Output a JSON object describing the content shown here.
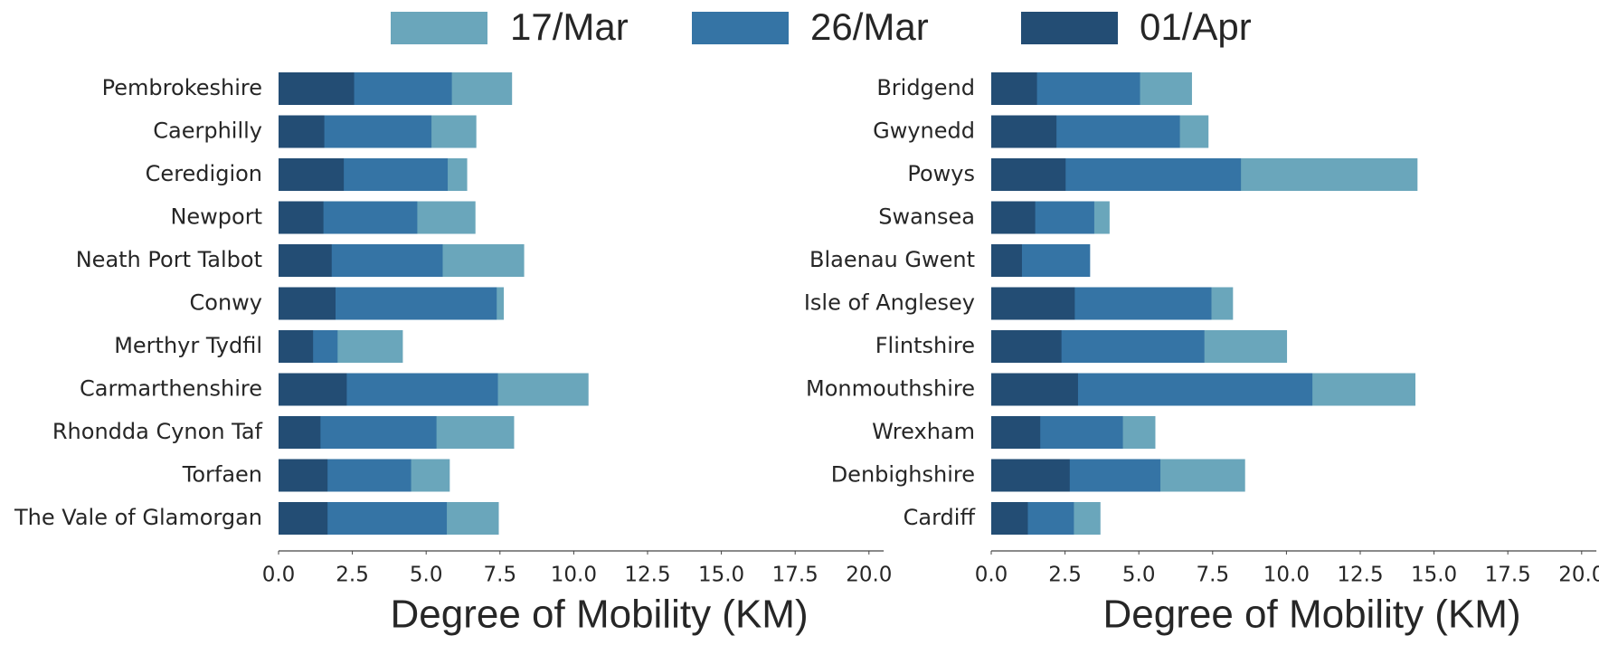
{
  "chart_data": [
    {
      "type": "bar",
      "orientation": "horizontal",
      "overlap": true,
      "xlabel": "Degree of Mobility (KM)",
      "categories": [
        "Pembrokeshire",
        "Caerphilly",
        "Ceredigion",
        "Newport",
        "Neath Port Talbot",
        "Conwy",
        "Merthyr Tydfil",
        "Carmarthenshire",
        "Rhondda Cynon Taf",
        "Torfaen",
        "The Vale of Glamorgan"
      ],
      "series": [
        {
          "name": "17/Mar",
          "color": "#6aa6bb",
          "values": [
            7.91,
            6.7,
            6.39,
            6.67,
            8.32,
            7.63,
            4.21,
            10.5,
            7.98,
            5.8,
            7.46
          ]
        },
        {
          "name": "26/Mar",
          "color": "#3574a5",
          "values": [
            5.87,
            5.18,
            5.73,
            4.7,
            5.56,
            7.39,
            2.0,
            7.43,
            5.35,
            4.49,
            5.7
          ]
        },
        {
          "name": "01/Apr",
          "color": "#234d74",
          "values": [
            2.56,
            1.55,
            2.21,
            1.52,
            1.8,
            1.93,
            1.17,
            2.31,
            1.42,
            1.66,
            1.66
          ]
        }
      ],
      "xlim": [
        0,
        20.5
      ],
      "xticks": [
        {
          "value": 0,
          "label": "0.0"
        },
        2.5,
        {
          "value": 5,
          "label": "5.0"
        },
        7.5,
        {
          "value": 10,
          "label": "10.0"
        },
        12.5,
        {
          "value": 15,
          "label": "15.0"
        },
        17.5,
        {
          "value": 20,
          "label": "20.0"
        }
      ]
    },
    {
      "type": "bar",
      "orientation": "horizontal",
      "overlap": true,
      "xlabel": "Degree of Mobility (KM)",
      "categories": [
        "Bridgend",
        "Gwynedd",
        "Powys",
        "Swansea",
        "Blaenau Gwent",
        "Isle of Anglesey",
        "Flintshire",
        "Monmouthshire",
        "Wrexham",
        "Denbighshire",
        "Cardiff"
      ],
      "series": [
        {
          "name": "17/Mar",
          "color": "#6aa6bb",
          "values": [
            6.8,
            7.36,
            14.44,
            4.01,
            null,
            8.19,
            10.02,
            14.37,
            5.56,
            8.6,
            3.7
          ]
        },
        {
          "name": "26/Mar",
          "color": "#3574a5",
          "values": [
            5.04,
            6.39,
            8.46,
            3.49,
            3.35,
            7.46,
            7.22,
            10.88,
            4.46,
            5.73,
            2.8
          ]
        },
        {
          "name": "01/Apr",
          "color": "#234d74",
          "values": [
            1.55,
            2.21,
            2.52,
            1.49,
            1.04,
            2.83,
            2.38,
            2.94,
            1.66,
            2.66,
            1.24
          ]
        }
      ],
      "xlim": [
        0,
        20.5
      ],
      "xticks": [
        {
          "value": 0,
          "label": "0.0"
        },
        2.5,
        {
          "value": 5,
          "label": "5.0"
        },
        7.5,
        {
          "value": 10,
          "label": "10.0"
        },
        12.5,
        {
          "value": 15,
          "label": "15.0"
        },
        17.5,
        {
          "value": 20,
          "label": "20.0"
        }
      ]
    }
  ]
}
